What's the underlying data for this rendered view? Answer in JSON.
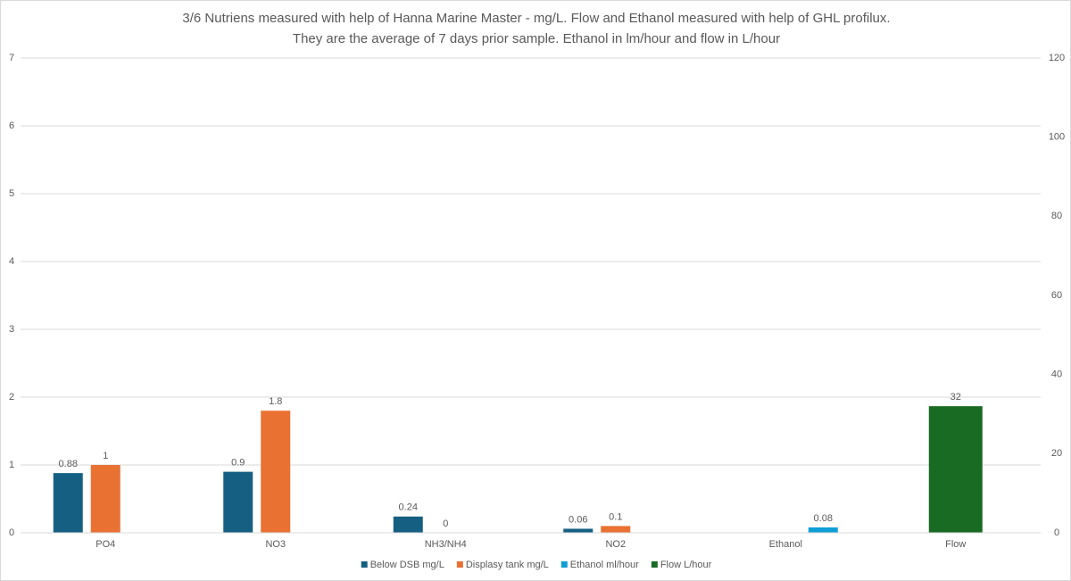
{
  "chart_data": {
    "type": "bar",
    "title": "3/6 Nutriens measured with help of Hanna Marine Master - mg/L. Flow and Ethanol measured with help of GHL profilux. They are the average of 7 days prior sample. Ethanol in lm/hour and flow in L/hour",
    "categories": [
      "PO4",
      "NO3",
      "NH3/NH4",
      "NO2",
      "Ethanol",
      "Flow"
    ],
    "series": [
      {
        "name": "Below DSB mg/L",
        "color": "#156082",
        "values": [
          0.88,
          0.9,
          0.24,
          0.06,
          null,
          null
        ]
      },
      {
        "name": "Displasy tank mg/L",
        "color": "#e97132",
        "values": [
          1,
          1.8,
          0,
          0.1,
          null,
          null
        ]
      },
      {
        "name": "Ethanol ml/hour",
        "color": "#0f9ed5",
        "values": [
          null,
          null,
          null,
          null,
          0.08,
          null
        ]
      },
      {
        "name": "Flow L/hour",
        "color": "#196b24",
        "axis": "y2",
        "values": [
          null,
          null,
          null,
          null,
          null,
          32
        ]
      }
    ],
    "ylim": [
      0,
      7
    ],
    "yticks": [
      0,
      1,
      2,
      3,
      4,
      5,
      6,
      7
    ],
    "y2lim": [
      0,
      120
    ],
    "y2ticks": [
      0,
      20,
      40,
      60,
      80,
      100,
      120
    ],
    "grid": true,
    "legend": "bottom"
  }
}
